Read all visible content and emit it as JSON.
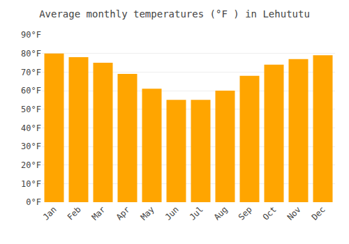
{
  "chart_data": {
    "type": "bar",
    "title": "Average monthly temperatures (°F ) in Lehututu",
    "categories": [
      "Jan",
      "Feb",
      "Mar",
      "Apr",
      "May",
      "Jun",
      "Jul",
      "Aug",
      "Sep",
      "Oct",
      "Nov",
      "Dec"
    ],
    "values": [
      80,
      78,
      75,
      69,
      61,
      55,
      55,
      60,
      68,
      74,
      77,
      79
    ],
    "color": "#FFA500",
    "ylim": [
      0,
      90
    ],
    "yticks": [
      {
        "value": 0,
        "label": "0°F"
      },
      {
        "value": 10,
        "label": "10°F"
      },
      {
        "value": 20,
        "label": "20°F"
      },
      {
        "value": 30,
        "label": "30°F"
      },
      {
        "value": 40,
        "label": "40°F"
      },
      {
        "value": 50,
        "label": "50°F"
      },
      {
        "value": 60,
        "label": "60°F"
      },
      {
        "value": 70,
        "label": "70°F"
      },
      {
        "value": 80,
        "label": "80°F"
      },
      {
        "value": 90,
        "label": "90°F"
      }
    ],
    "grid": true
  }
}
